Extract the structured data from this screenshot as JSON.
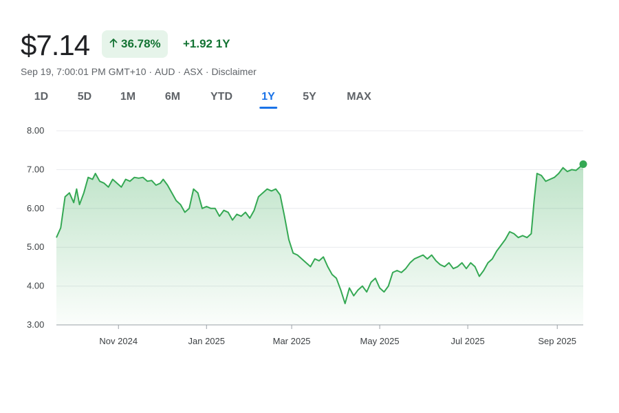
{
  "header": {
    "price": "$7.14",
    "change_percent": "36.78%",
    "change_abs": "+1.92 1Y",
    "arrow_icon": "arrow-up-icon",
    "positive_color": "#137333",
    "badge_bg": "#e6f4ea"
  },
  "meta": {
    "timestamp": "Sep 19, 7:00:01 PM GMT+10",
    "currency": "AUD",
    "exchange": "ASX",
    "disclaimer": "Disclaimer",
    "separator": " · "
  },
  "tabs": {
    "items": [
      "1D",
      "5D",
      "1M",
      "6M",
      "YTD",
      "1Y",
      "5Y",
      "MAX"
    ],
    "active": "1Y",
    "active_color": "#1a73e8"
  },
  "chart_data": {
    "type": "area",
    "line_color": "#34a853",
    "fill_color": "#34a853",
    "grid": true,
    "ylim": [
      3.0,
      8.0
    ],
    "yticks": [
      "3.00",
      "4.00",
      "5.00",
      "6.00",
      "7.00",
      "8.00"
    ],
    "x_range": [
      "2024-09-19",
      "2025-09-19"
    ],
    "xticks": [
      {
        "date": "2024-11-01",
        "label": "Nov 2024"
      },
      {
        "date": "2025-01-01",
        "label": "Jan 2025"
      },
      {
        "date": "2025-03-01",
        "label": "Mar 2025"
      },
      {
        "date": "2025-05-01",
        "label": "May 2025"
      },
      {
        "date": "2025-07-01",
        "label": "Jul 2025"
      },
      {
        "date": "2025-09-01",
        "label": "Sep 2025"
      }
    ],
    "series": [
      {
        "points": [
          [
            "2024-09-19",
            5.25
          ],
          [
            "2024-09-22",
            5.5
          ],
          [
            "2024-09-25",
            6.3
          ],
          [
            "2024-09-28",
            6.4
          ],
          [
            "2024-10-01",
            6.15
          ],
          [
            "2024-10-03",
            6.5
          ],
          [
            "2024-10-05",
            6.1
          ],
          [
            "2024-10-08",
            6.4
          ],
          [
            "2024-10-11",
            6.8
          ],
          [
            "2024-10-14",
            6.75
          ],
          [
            "2024-10-16",
            6.9
          ],
          [
            "2024-10-19",
            6.7
          ],
          [
            "2024-10-22",
            6.65
          ],
          [
            "2024-10-25",
            6.55
          ],
          [
            "2024-10-28",
            6.75
          ],
          [
            "2024-10-31",
            6.65
          ],
          [
            "2024-11-03",
            6.55
          ],
          [
            "2024-11-06",
            6.75
          ],
          [
            "2024-11-09",
            6.7
          ],
          [
            "2024-11-12",
            6.8
          ],
          [
            "2024-11-15",
            6.78
          ],
          [
            "2024-11-18",
            6.8
          ],
          [
            "2024-11-21",
            6.7
          ],
          [
            "2024-11-24",
            6.72
          ],
          [
            "2024-11-27",
            6.6
          ],
          [
            "2024-11-30",
            6.65
          ],
          [
            "2024-12-02",
            6.75
          ],
          [
            "2024-12-05",
            6.6
          ],
          [
            "2024-12-08",
            6.4
          ],
          [
            "2024-12-11",
            6.2
          ],
          [
            "2024-12-14",
            6.1
          ],
          [
            "2024-12-17",
            5.9
          ],
          [
            "2024-12-20",
            6.0
          ],
          [
            "2024-12-23",
            6.5
          ],
          [
            "2024-12-26",
            6.4
          ],
          [
            "2024-12-29",
            6.0
          ],
          [
            "2025-01-01",
            6.05
          ],
          [
            "2025-01-04",
            6.0
          ],
          [
            "2025-01-07",
            6.0
          ],
          [
            "2025-01-10",
            5.8
          ],
          [
            "2025-01-13",
            5.95
          ],
          [
            "2025-01-16",
            5.9
          ],
          [
            "2025-01-19",
            5.7
          ],
          [
            "2025-01-22",
            5.85
          ],
          [
            "2025-01-25",
            5.8
          ],
          [
            "2025-01-28",
            5.9
          ],
          [
            "2025-01-31",
            5.75
          ],
          [
            "2025-02-03",
            5.95
          ],
          [
            "2025-02-06",
            6.3
          ],
          [
            "2025-02-09",
            6.4
          ],
          [
            "2025-02-12",
            6.5
          ],
          [
            "2025-02-15",
            6.45
          ],
          [
            "2025-02-18",
            6.5
          ],
          [
            "2025-02-21",
            6.35
          ],
          [
            "2025-02-24",
            5.8
          ],
          [
            "2025-02-27",
            5.2
          ],
          [
            "2025-03-02",
            4.85
          ],
          [
            "2025-03-05",
            4.8
          ],
          [
            "2025-03-08",
            4.7
          ],
          [
            "2025-03-11",
            4.6
          ],
          [
            "2025-03-14",
            4.5
          ],
          [
            "2025-03-17",
            4.7
          ],
          [
            "2025-03-20",
            4.65
          ],
          [
            "2025-03-23",
            4.75
          ],
          [
            "2025-03-26",
            4.5
          ],
          [
            "2025-03-29",
            4.3
          ],
          [
            "2025-04-01",
            4.2
          ],
          [
            "2025-04-04",
            3.9
          ],
          [
            "2025-04-07",
            3.55
          ],
          [
            "2025-04-10",
            3.95
          ],
          [
            "2025-04-13",
            3.75
          ],
          [
            "2025-04-16",
            3.9
          ],
          [
            "2025-04-19",
            4.0
          ],
          [
            "2025-04-22",
            3.85
          ],
          [
            "2025-04-25",
            4.1
          ],
          [
            "2025-04-28",
            4.2
          ],
          [
            "2025-05-01",
            3.95
          ],
          [
            "2025-05-04",
            3.85
          ],
          [
            "2025-05-07",
            4.0
          ],
          [
            "2025-05-10",
            4.35
          ],
          [
            "2025-05-13",
            4.4
          ],
          [
            "2025-05-16",
            4.35
          ],
          [
            "2025-05-19",
            4.45
          ],
          [
            "2025-05-22",
            4.6
          ],
          [
            "2025-05-25",
            4.7
          ],
          [
            "2025-05-28",
            4.75
          ],
          [
            "2025-05-31",
            4.8
          ],
          [
            "2025-06-03",
            4.7
          ],
          [
            "2025-06-06",
            4.8
          ],
          [
            "2025-06-09",
            4.65
          ],
          [
            "2025-06-12",
            4.55
          ],
          [
            "2025-06-15",
            4.5
          ],
          [
            "2025-06-18",
            4.6
          ],
          [
            "2025-06-21",
            4.45
          ],
          [
            "2025-06-24",
            4.5
          ],
          [
            "2025-06-27",
            4.6
          ],
          [
            "2025-06-30",
            4.45
          ],
          [
            "2025-07-03",
            4.6
          ],
          [
            "2025-07-06",
            4.5
          ],
          [
            "2025-07-09",
            4.25
          ],
          [
            "2025-07-12",
            4.4
          ],
          [
            "2025-07-15",
            4.6
          ],
          [
            "2025-07-18",
            4.7
          ],
          [
            "2025-07-21",
            4.9
          ],
          [
            "2025-07-24",
            5.05
          ],
          [
            "2025-07-27",
            5.2
          ],
          [
            "2025-07-30",
            5.4
          ],
          [
            "2025-08-02",
            5.35
          ],
          [
            "2025-08-05",
            5.25
          ],
          [
            "2025-08-08",
            5.3
          ],
          [
            "2025-08-11",
            5.25
          ],
          [
            "2025-08-14",
            5.35
          ],
          [
            "2025-08-16",
            6.2
          ],
          [
            "2025-08-18",
            6.9
          ],
          [
            "2025-08-21",
            6.85
          ],
          [
            "2025-08-24",
            6.7
          ],
          [
            "2025-08-27",
            6.75
          ],
          [
            "2025-08-30",
            6.8
          ],
          [
            "2025-09-02",
            6.9
          ],
          [
            "2025-09-05",
            7.05
          ],
          [
            "2025-09-08",
            6.95
          ],
          [
            "2025-09-11",
            7.0
          ],
          [
            "2025-09-14",
            6.98
          ],
          [
            "2025-09-19",
            7.14
          ]
        ]
      }
    ]
  }
}
